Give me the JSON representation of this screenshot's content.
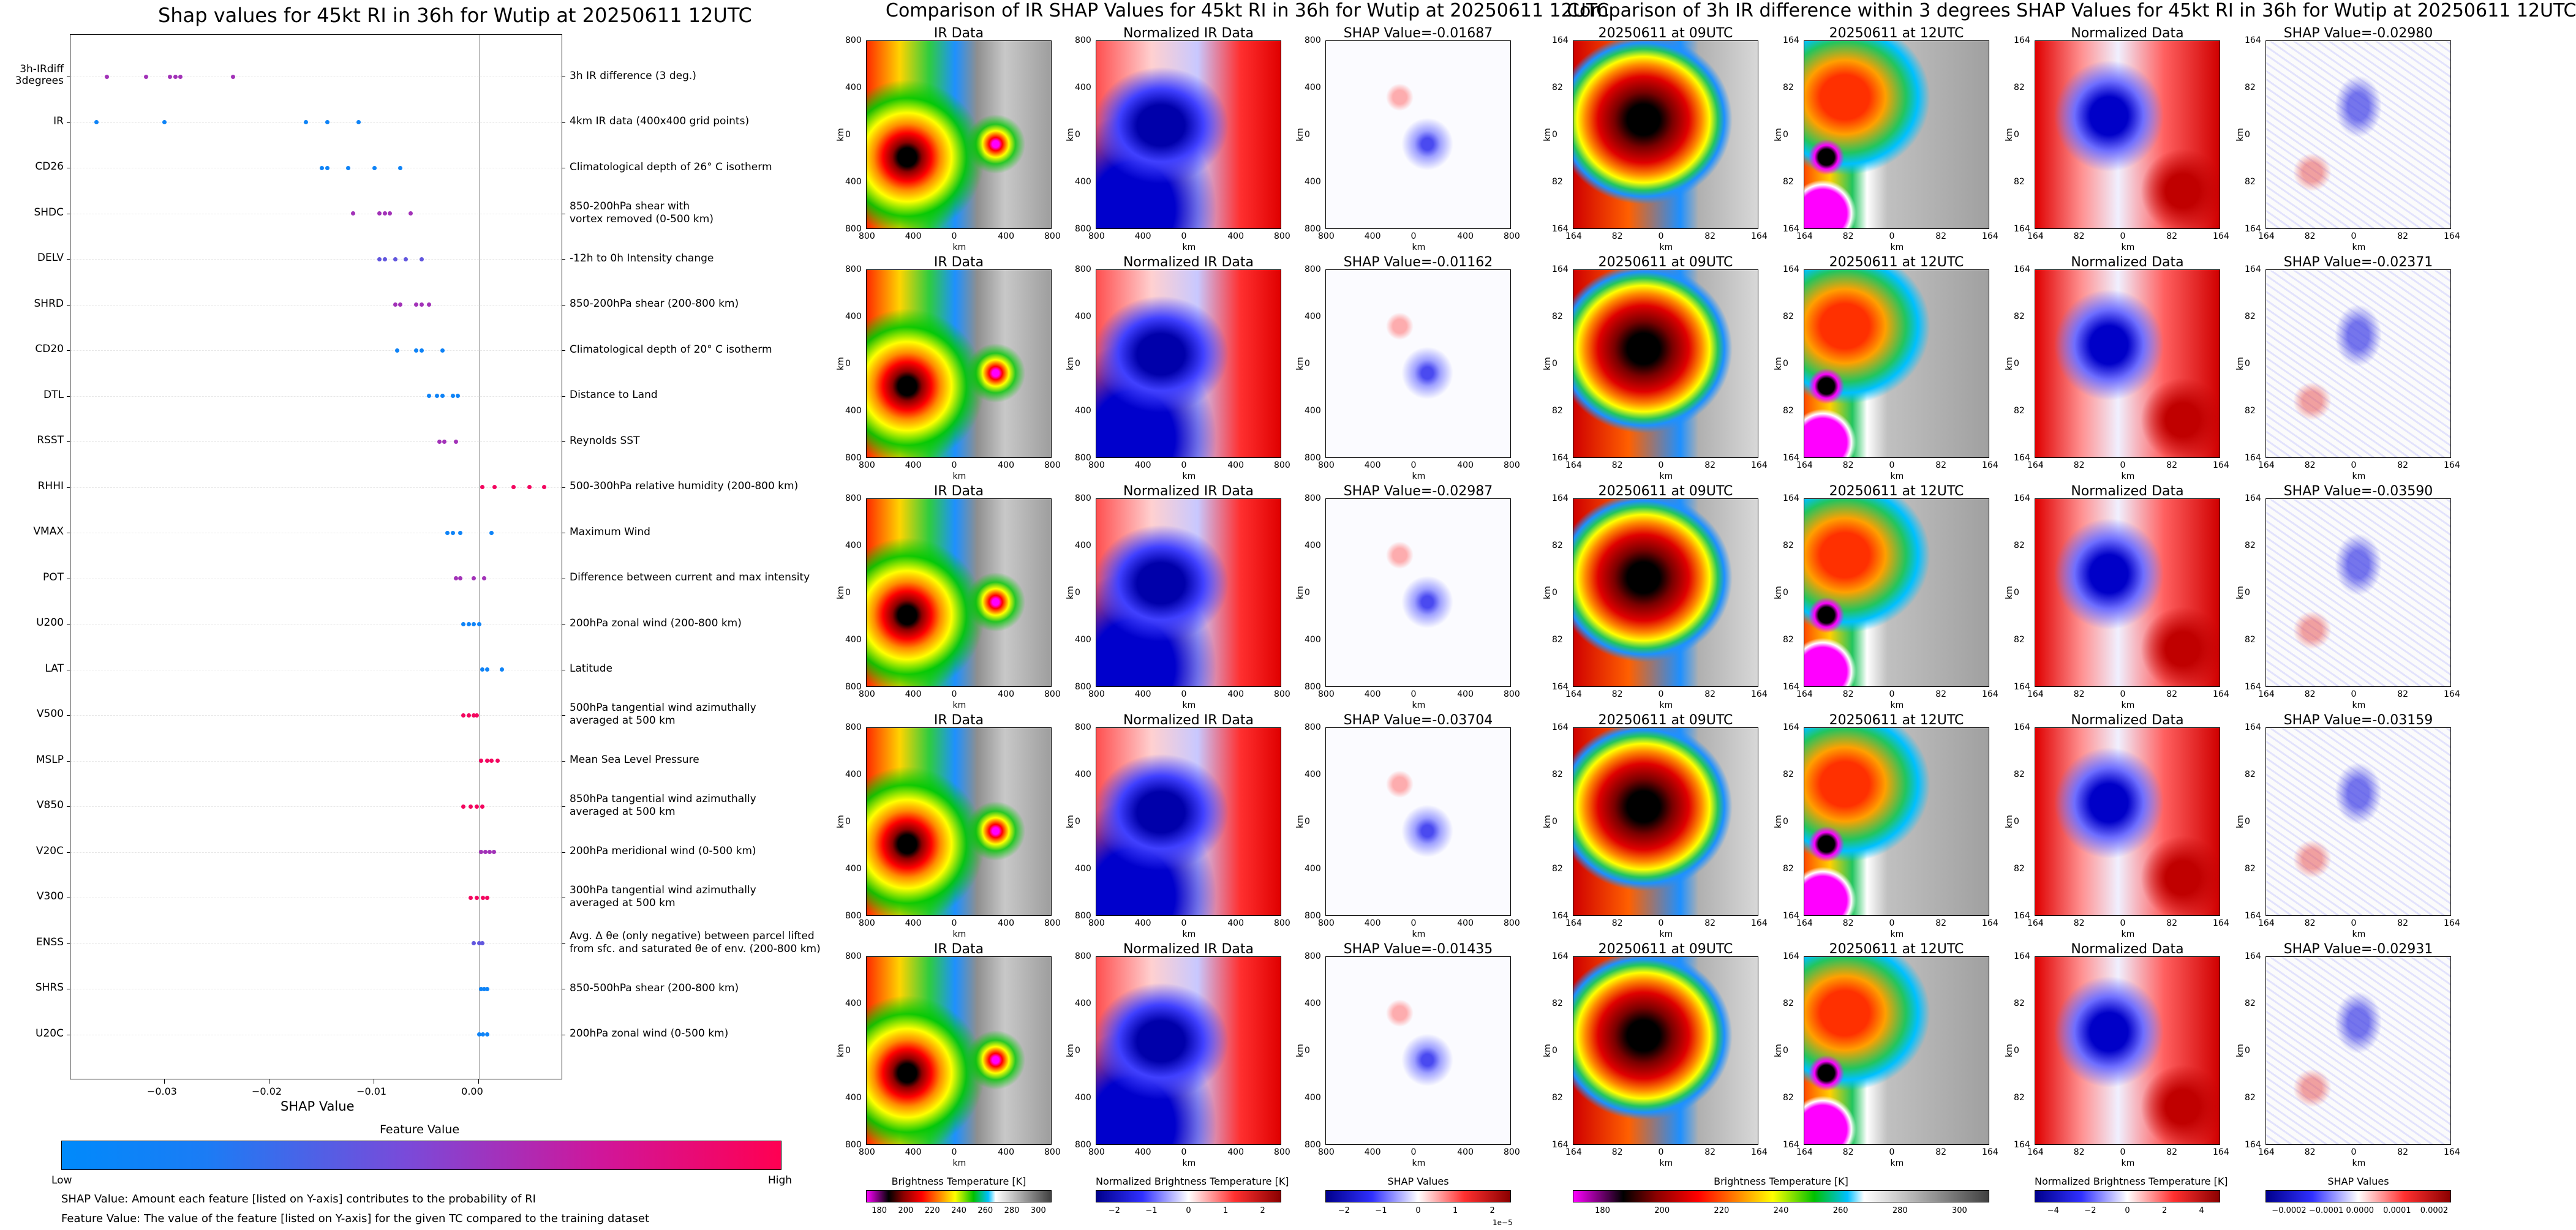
{
  "chart_data": [
    {
      "type": "scatter",
      "title": "Shap values for 45kt RI in 36h for Wutip at 20250611 12UTC",
      "xlabel": "SHAP Value",
      "xlim": [
        -0.039,
        0.008
      ],
      "xticks": [
        "−0.03",
        "−0.02",
        "−0.01",
        "0.00"
      ],
      "xtick_values": [
        -0.03,
        -0.02,
        -0.01,
        0.0
      ],
      "features": [
        {
          "code": "3h-IRdiff\n3degrees",
          "desc": "3h IR difference (3 deg.)",
          "shap": [
            -0.0355,
            -0.0318,
            -0.0295,
            -0.029,
            -0.0285,
            -0.0235
          ],
          "fv": [
            0.6,
            0.6,
            0.6,
            0.6,
            0.6,
            0.6
          ]
        },
        {
          "code": "IR",
          "desc": "4km IR data (400x400 grid points)",
          "shap": [
            -0.0365,
            -0.03,
            -0.0165,
            -0.0145,
            -0.0115
          ],
          "fv": [
            0.05,
            0.05,
            0.05,
            0.05,
            0.05
          ]
        },
        {
          "code": "CD26",
          "desc": "Climatological depth of 26° C isotherm",
          "shap": [
            -0.015,
            -0.0145,
            -0.0125,
            -0.01,
            -0.0075
          ],
          "fv": [
            0.05,
            0.05,
            0.05,
            0.05,
            0.05
          ]
        },
        {
          "code": "SHDC",
          "desc": "850-200hPa shear with\nvortex removed (0-500 km)",
          "shap": [
            -0.012,
            -0.0095,
            -0.009,
            -0.0085,
            -0.0065
          ],
          "fv": [
            0.6,
            0.6,
            0.6,
            0.6,
            0.6
          ]
        },
        {
          "code": "DELV",
          "desc": "-12h to 0h Intensity change",
          "shap": [
            -0.0095,
            -0.009,
            -0.008,
            -0.007,
            -0.0055
          ],
          "fv": [
            0.35,
            0.35,
            0.35,
            0.35,
            0.35
          ]
        },
        {
          "code": "SHRD",
          "desc": "850-200hPa shear (200-800 km)",
          "shap": [
            -0.008,
            -0.0075,
            -0.006,
            -0.0055,
            -0.0048
          ],
          "fv": [
            0.6,
            0.6,
            0.6,
            0.6,
            0.6
          ]
        },
        {
          "code": "CD20",
          "desc": "Climatological depth of 20° C isotherm",
          "shap": [
            -0.0078,
            -0.006,
            -0.0055,
            -0.0035
          ],
          "fv": [
            0.05,
            0.05,
            0.05,
            0.05
          ]
        },
        {
          "code": "DTL",
          "desc": "Distance to Land",
          "shap": [
            -0.0048,
            -0.004,
            -0.0035,
            -0.0025,
            -0.002
          ],
          "fv": [
            0.05,
            0.05,
            0.05,
            0.05,
            0.05
          ]
        },
        {
          "code": "RSST",
          "desc": "Reynolds SST",
          "shap": [
            -0.0038,
            -0.0033,
            -0.0022
          ],
          "fv": [
            0.6,
            0.6,
            0.6
          ]
        },
        {
          "code": "RHHI",
          "desc": "500-300hPa relative humidity (200-800 km)",
          "shap": [
            0.0003,
            0.0015,
            0.0033,
            0.0048,
            0.0062
          ],
          "fv": [
            0.95,
            0.95,
            0.95,
            0.95,
            0.95
          ]
        },
        {
          "code": "VMAX",
          "desc": "Maximum Wind",
          "shap": [
            -0.003,
            -0.0025,
            -0.0018,
            0.0012
          ],
          "fv": [
            0.05,
            0.05,
            0.05,
            0.05
          ]
        },
        {
          "code": "POT",
          "desc": "Difference between current and max intensity",
          "shap": [
            -0.0022,
            -0.0018,
            -0.0005,
            0.0005
          ],
          "fv": [
            0.6,
            0.6,
            0.6,
            0.6
          ]
        },
        {
          "code": "U200",
          "desc": "200hPa zonal wind (200-800 km)",
          "shap": [
            -0.0015,
            -0.001,
            -0.0005,
            0.0
          ],
          "fv": [
            0.05,
            0.05,
            0.05,
            0.05
          ]
        },
        {
          "code": "LAT",
          "desc": "Latitude",
          "shap": [
            0.0003,
            0.0008,
            0.0022
          ],
          "fv": [
            0.05,
            0.05,
            0.05
          ]
        },
        {
          "code": "V500",
          "desc": "500hPa tangential wind azimuthally\naveraged at 500 km",
          "shap": [
            -0.0015,
            -0.001,
            -0.0005,
            -0.0002
          ],
          "fv": [
            0.95,
            0.95,
            0.95,
            0.95
          ]
        },
        {
          "code": "MSLP",
          "desc": "Mean Sea Level Pressure",
          "shap": [
            0.0002,
            0.0008,
            0.0012,
            0.0018
          ],
          "fv": [
            0.95,
            0.95,
            0.95,
            0.95
          ]
        },
        {
          "code": "V850",
          "desc": "850hPa tangential wind azimuthally\naveraged at 500 km",
          "shap": [
            -0.0015,
            -0.0008,
            -0.0002,
            0.0003
          ],
          "fv": [
            0.95,
            0.95,
            0.95,
            0.95
          ]
        },
        {
          "code": "V20C",
          "desc": "200hPa meridional wind (0-500 km)",
          "shap": [
            0.0002,
            0.0006,
            0.001,
            0.0014
          ],
          "fv": [
            0.6,
            0.6,
            0.6,
            0.6
          ]
        },
        {
          "code": "V300",
          "desc": "300hPa tangential wind azimuthally\naveraged at 500 km",
          "shap": [
            -0.0008,
            -0.0002,
            0.0004,
            0.0008
          ],
          "fv": [
            0.95,
            0.95,
            0.95,
            0.95
          ]
        },
        {
          "code": "ENSS",
          "desc": "Avg. Δ θe (only negative) between parcel lifted\nfrom sfc. and saturated θe of env. (200-800 km)",
          "shap": [
            -0.0005,
            0.0,
            0.0003
          ],
          "fv": [
            0.35,
            0.35,
            0.35
          ]
        },
        {
          "code": "SHRS",
          "desc": "850-500hPa shear (200-800 km)",
          "shap": [
            0.0002,
            0.0005,
            0.0008
          ],
          "fv": [
            0.05,
            0.05,
            0.05
          ]
        },
        {
          "code": "U20C",
          "desc": "200hPa zonal wind (0-500 km)",
          "shap": [
            0.0,
            0.0004,
            0.0008
          ],
          "fv": [
            0.05,
            0.05,
            0.05
          ]
        }
      ],
      "colorbar": {
        "label": "Feature Value",
        "low": "Low",
        "high": "High"
      }
    },
    {
      "type": "heatmap",
      "title": "Comparison of IR SHAP Values for 45kt RI in 36h for Wutip at 20250611 12UTC",
      "columns": [
        "IR Data",
        "Normalized IR Data"
      ],
      "shap_titles": [
        "SHAP Value=-0.01687",
        "SHAP Value=-0.01162",
        "SHAP Value=-0.02987",
        "SHAP Value=-0.03704",
        "SHAP Value=-0.01435"
      ],
      "axis_label": "km",
      "ticks": [
        "800",
        "400",
        "0",
        "400",
        "800"
      ],
      "colorbars": [
        {
          "label": "Brightness Temperature [K]",
          "ticks": [
            "180",
            "200",
            "220",
            "240",
            "260",
            "280",
            "300"
          ]
        },
        {
          "label": "Normalized Brightness Temperature [K]",
          "ticks": [
            "−2",
            "−1",
            "0",
            "1",
            "2"
          ]
        },
        {
          "label": "SHAP Values",
          "ticks": [
            "−2",
            "−1",
            "0",
            "1",
            "2"
          ],
          "offset": "1e−5"
        }
      ]
    },
    {
      "type": "heatmap",
      "title": "Comparison of 3h IR difference within 3 degrees SHAP Values for 45kt RI in 36h for Wutip at 20250611 12UTC",
      "columns": [
        "20250611 at 09UTC",
        "20250611 at 12UTC",
        "Normalized Data"
      ],
      "shap_titles": [
        "SHAP Value=-0.02980",
        "SHAP Value=-0.02371",
        "SHAP Value=-0.03590",
        "SHAP Value=-0.03159",
        "SHAP Value=-0.02931"
      ],
      "axis_label": "km",
      "ticks": [
        "164",
        "82",
        "0",
        "82",
        "164"
      ],
      "colorbars": [
        {
          "label": "Brightness Temperature [K]",
          "ticks": [
            "180",
            "200",
            "220",
            "240",
            "260",
            "280",
            "300"
          ]
        },
        {
          "label": "Normalized Brightness Temperature [K]",
          "ticks": [
            "−4",
            "−2",
            "0",
            "2",
            "4"
          ]
        },
        {
          "label": "SHAP Values",
          "ticks": [
            "−0.0002",
            "−0.0001",
            "0.0000",
            "0.0001",
            "0.0002"
          ]
        }
      ]
    }
  ],
  "footnotes": {
    "line1": "SHAP Value: Amount each feature [listed on Y-axis] contributes to the probability of RI",
    "line2": "Feature Value: The value of the feature [listed on Y-axis] for the given TC compared to the training dataset"
  },
  "colors": {
    "low": "#008afb",
    "mid": "#8b3fd1",
    "high": "#ff0052"
  }
}
